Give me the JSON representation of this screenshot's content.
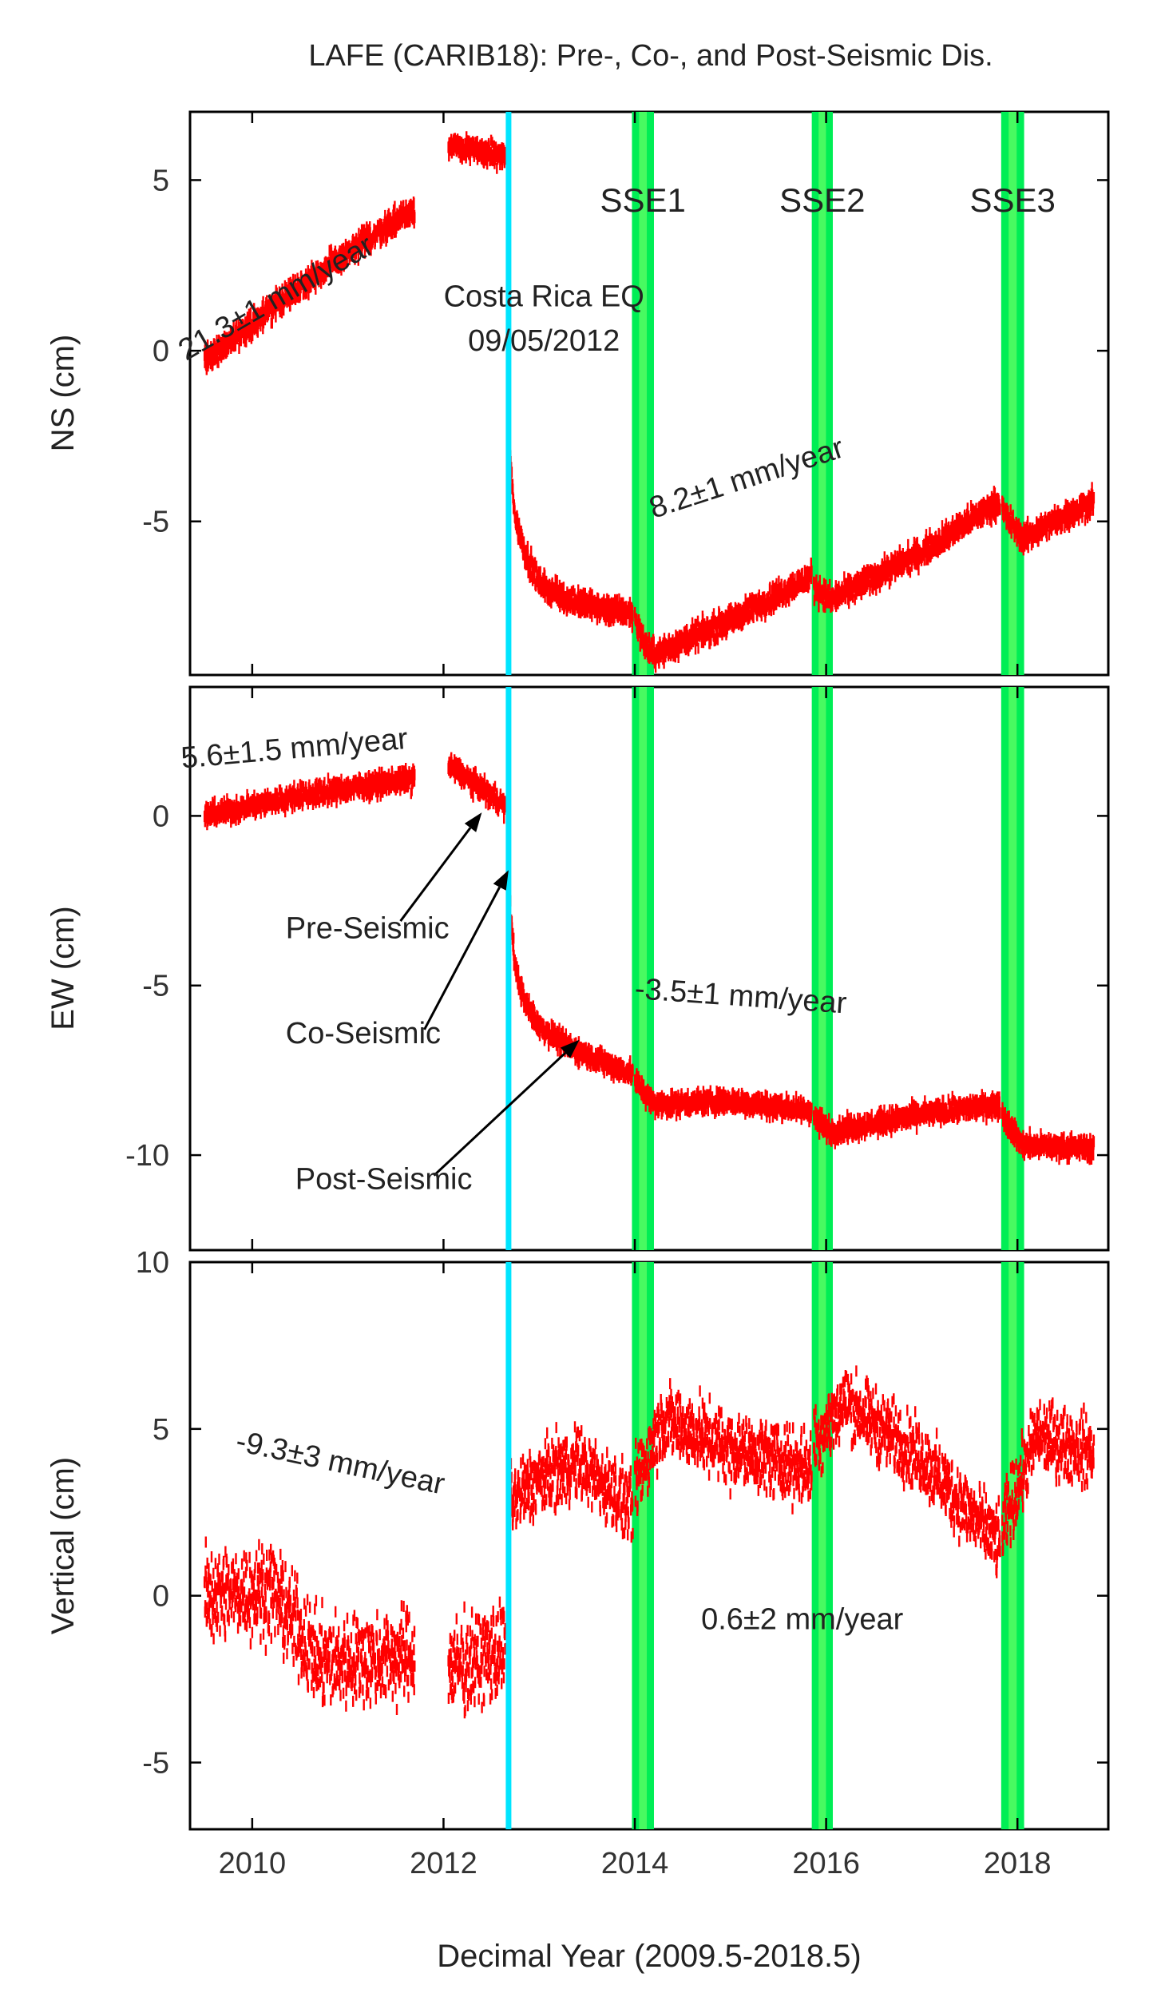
{
  "chart_data": {
    "type": "scatter",
    "title": "LAFE (CARIB18): Pre-, Co-, and Post-Seismic Dis.",
    "xlabel": "Decimal Year (2009.5-2018.5)",
    "xlim": [
      2009.35,
      2018.95
    ],
    "x_ticks": [
      "2010",
      "2012",
      "2014",
      "2016",
      "2018"
    ],
    "colors": {
      "data": "#ff0000",
      "earthquake": "#00e5ff",
      "sse_band": "#00ee55",
      "sse_core": "#66ff66"
    },
    "earthquake_year": 2012.68,
    "sse_events": [
      {
        "name": "SSE1",
        "start": 2013.97,
        "end": 2014.2
      },
      {
        "name": "SSE2",
        "start": 2015.85,
        "end": 2016.07
      },
      {
        "name": "SSE3",
        "start": 2017.83,
        "end": 2018.07
      }
    ],
    "panels": [
      {
        "id": "ns",
        "ylabel": "NS (cm)",
        "ylim": [
          -9.5,
          7
        ],
        "yticks": [
          -5,
          0,
          5
        ],
        "series_segments": [
          {
            "x": [
              2009.5,
              2010.5,
              2011.7
            ],
            "y": [
              -0.3,
              1.9,
              4.2
            ],
            "noise": 0.35
          },
          {
            "x": [
              2012.05,
              2012.65
            ],
            "y": [
              6.0,
              5.7
            ],
            "noise": 0.3
          },
          {
            "x": [
              2012.69,
              2012.75,
              2012.85,
              2013.0,
              2013.3,
              2013.7,
              2013.98
            ],
            "y": [
              -3.0,
              -4.9,
              -5.9,
              -6.8,
              -7.3,
              -7.6,
              -7.7
            ],
            "noise": 0.35
          },
          {
            "x": [
              2014.0,
              2014.1,
              2014.2,
              2015.0,
              2015.85
            ],
            "y": [
              -7.8,
              -8.6,
              -8.9,
              -7.9,
              -6.6
            ],
            "noise": 0.35
          },
          {
            "x": [
              2015.87,
              2016.05,
              2017.0,
              2017.82
            ],
            "y": [
              -6.9,
              -7.3,
              -5.9,
              -4.4
            ],
            "noise": 0.35
          },
          {
            "x": [
              2017.84,
              2018.05,
              2018.8
            ],
            "y": [
              -4.7,
              -5.5,
              -4.4
            ],
            "noise": 0.35
          }
        ],
        "annotations": [
          {
            "text": "21.3±1 mm/year",
            "year": 2010.3,
            "value": 1.3,
            "rotate": -30,
            "anchor": "middle"
          },
          {
            "text": "Costa Rica EQ",
            "year": 2013.05,
            "value": 1.3,
            "rotate": 0,
            "anchor": "middle"
          },
          {
            "text": "09/05/2012",
            "year": 2013.05,
            "value": 0.0,
            "rotate": 0,
            "anchor": "middle"
          },
          {
            "text": "8.2±1 mm/year",
            "year": 2015.2,
            "value": -4.0,
            "rotate": -18,
            "anchor": "middle"
          }
        ]
      },
      {
        "id": "ew",
        "ylabel": "EW (cm)",
        "ylim": [
          -12.8,
          3.8
        ],
        "yticks": [
          -10,
          -5,
          0
        ],
        "series_segments": [
          {
            "x": [
              2009.5,
              2010.5,
              2011.7
            ],
            "y": [
              0.0,
              0.6,
              1.1
            ],
            "noise": 0.3
          },
          {
            "x": [
              2012.05,
              2012.35,
              2012.65
            ],
            "y": [
              1.5,
              0.9,
              0.3
            ],
            "noise": 0.3
          },
          {
            "x": [
              2012.69,
              2012.75,
              2012.85,
              2013.0,
              2013.3,
              2013.7,
              2013.98
            ],
            "y": [
              -2.5,
              -4.5,
              -5.5,
              -6.2,
              -6.8,
              -7.3,
              -7.6
            ],
            "noise": 0.3
          },
          {
            "x": [
              2014.0,
              2014.2,
              2015.0,
              2015.85
            ],
            "y": [
              -7.8,
              -8.5,
              -8.4,
              -8.7
            ],
            "noise": 0.3
          },
          {
            "x": [
              2015.87,
              2016.05,
              2017.0,
              2017.82
            ],
            "y": [
              -8.9,
              -9.3,
              -8.8,
              -8.5
            ],
            "noise": 0.3
          },
          {
            "x": [
              2017.84,
              2018.05,
              2018.8
            ],
            "y": [
              -8.8,
              -9.7,
              -9.8
            ],
            "noise": 0.3
          }
        ],
        "annotations": [
          {
            "text": "5.6±1.5 mm/year",
            "year": 2010.45,
            "value": 1.7,
            "rotate": -5,
            "anchor": "middle"
          },
          {
            "text": "Pre-Seismic",
            "year": 2010.35,
            "value": -3.6,
            "rotate": 0,
            "anchor": "start"
          },
          {
            "text": "Co-Seismic",
            "year": 2010.35,
            "value": -6.7,
            "rotate": 0,
            "anchor": "start"
          },
          {
            "text": "Post-Seismic",
            "year": 2010.45,
            "value": -11.0,
            "rotate": 0,
            "anchor": "start"
          },
          {
            "text": "-3.5±1 mm/year",
            "year": 2015.1,
            "value": -5.6,
            "rotate": 4,
            "anchor": "middle"
          }
        ],
        "arrows": [
          {
            "from": [
              2011.55,
              -3.1
            ],
            "to": [
              2012.4,
              0.1
            ]
          },
          {
            "from": [
              2011.8,
              -6.3
            ],
            "to": [
              2012.68,
              -1.6
            ]
          },
          {
            "from": [
              2011.9,
              -10.6
            ],
            "to": [
              2013.42,
              -6.6
            ]
          }
        ]
      },
      {
        "id": "vertical",
        "ylabel": "Vertical (cm)",
        "ylim": [
          -7,
          10
        ],
        "yticks": [
          -5,
          0,
          5,
          10
        ],
        "series_segments": [
          {
            "x": [
              2009.5,
              2010.2,
              2010.7,
              2011.7
            ],
            "y": [
              0.0,
              0.2,
              -2.0,
              -1.8
            ],
            "noise": 1.3
          },
          {
            "x": [
              2012.05,
              2012.65
            ],
            "y": [
              -2.2,
              -1.6
            ],
            "noise": 1.3
          },
          {
            "x": [
              2012.69,
              2013.0,
              2013.4,
              2013.98
            ],
            "y": [
              2.8,
              3.5,
              4.0,
              2.6
            ],
            "noise": 1.0
          },
          {
            "x": [
              2014.0,
              2014.3,
              2015.0,
              2015.85
            ],
            "y": [
              3.3,
              5.3,
              4.4,
              3.8
            ],
            "noise": 1.0
          },
          {
            "x": [
              2015.87,
              2016.2,
              2017.0,
              2017.82
            ],
            "y": [
              4.6,
              5.8,
              4.1,
              1.5
            ],
            "noise": 1.0
          },
          {
            "x": [
              2017.84,
              2018.2,
              2018.8
            ],
            "y": [
              2.0,
              4.8,
              4.3
            ],
            "noise": 1.0
          }
        ],
        "annotations": [
          {
            "text": "-9.3±3 mm/year",
            "year": 2010.9,
            "value": 3.7,
            "rotate": 12,
            "anchor": "middle"
          },
          {
            "text": "0.6±2 mm/year",
            "year": 2015.75,
            "value": -1.0,
            "rotate": 0,
            "anchor": "middle"
          }
        ]
      }
    ]
  }
}
